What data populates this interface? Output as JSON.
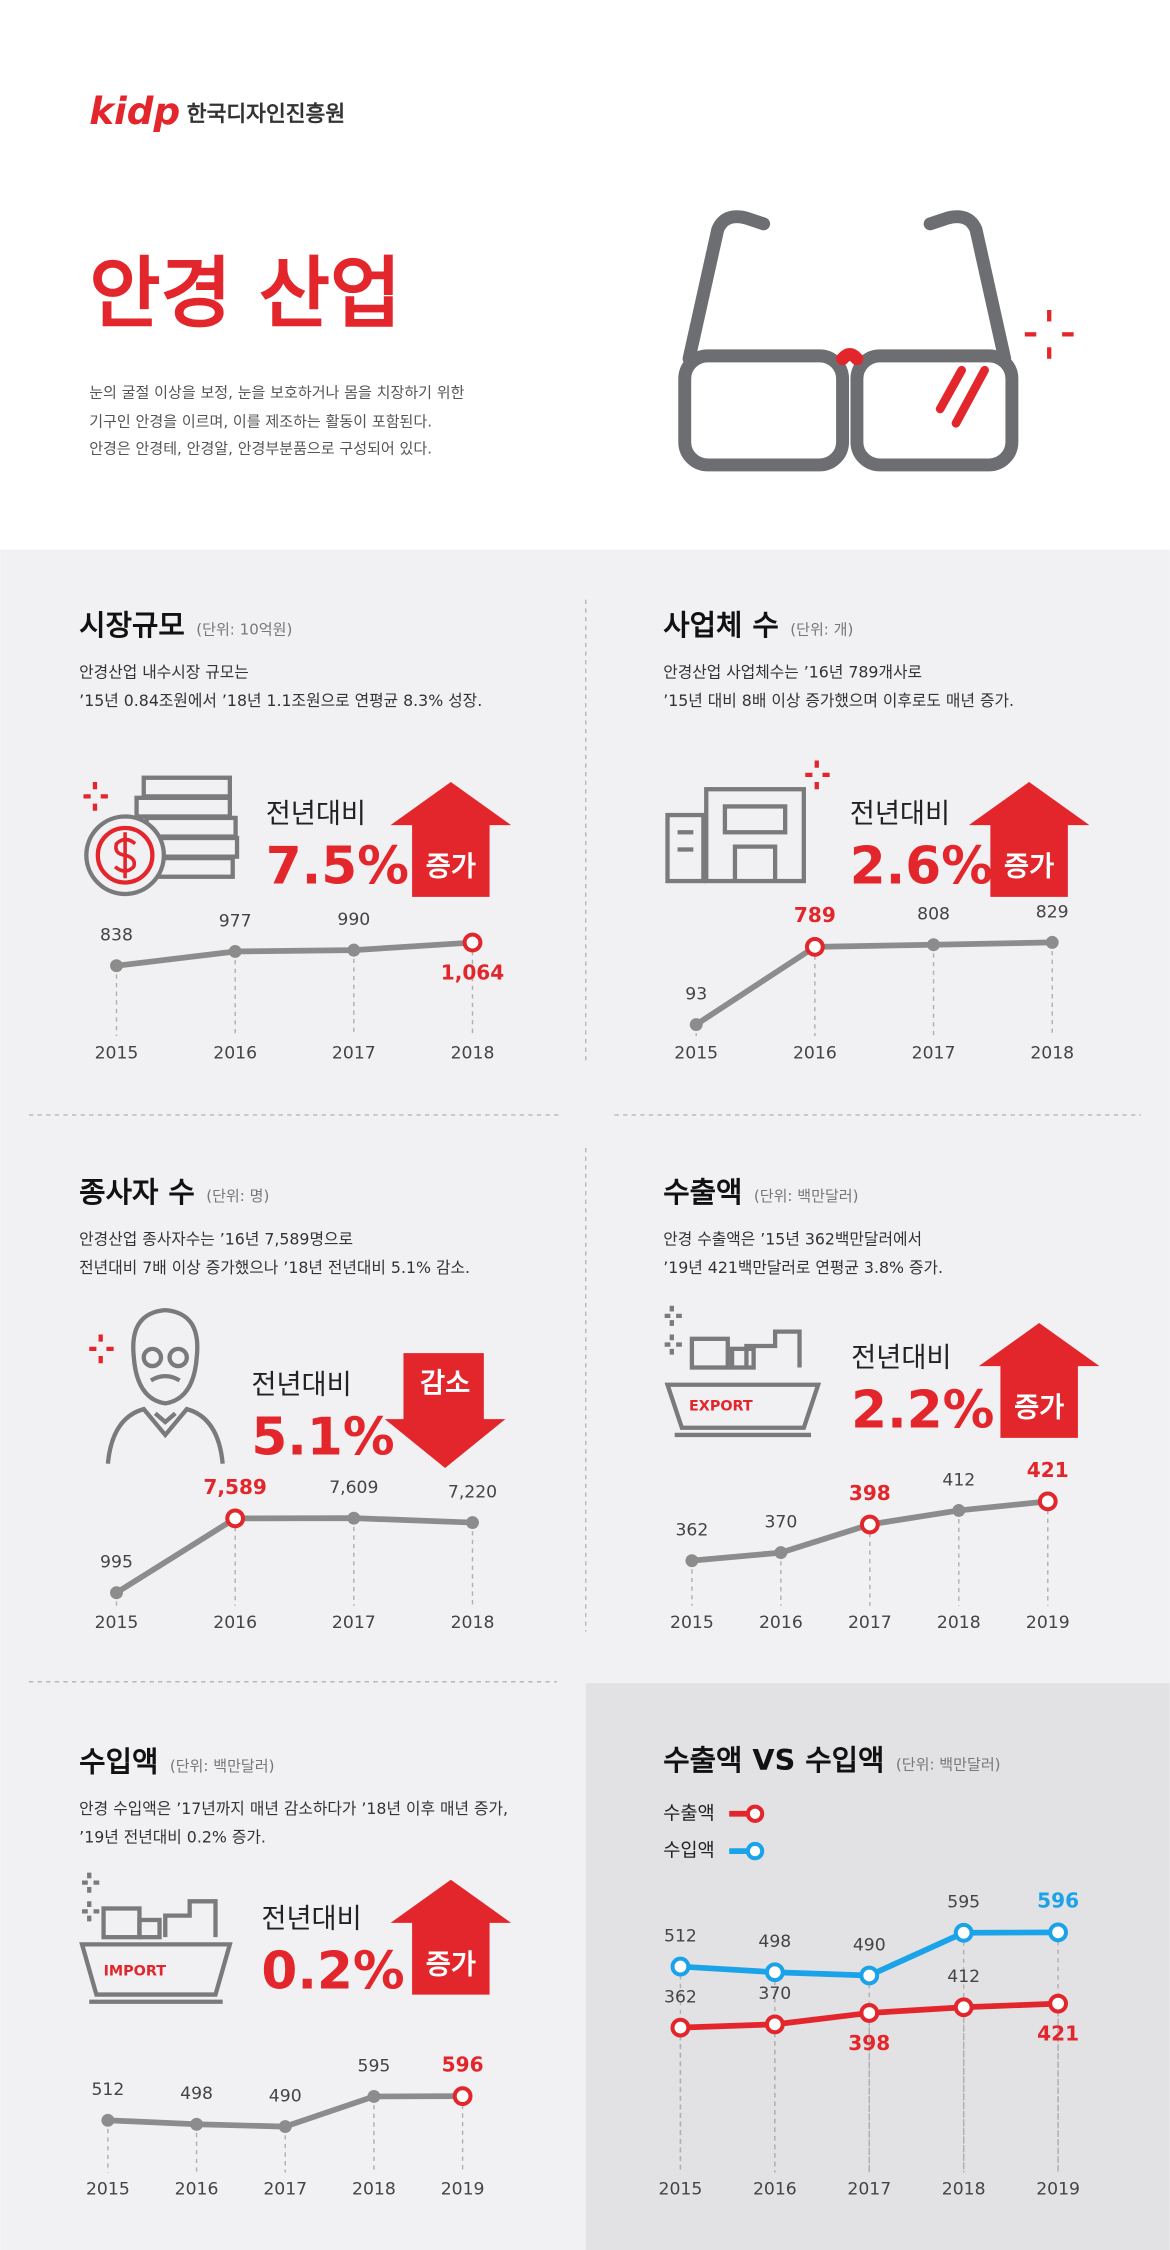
{
  "header": {
    "logo": "kidp",
    "org": "한국디자인진흥원",
    "title": "안경 산업",
    "description": [
      "눈의 굴절 이상을 보정, 눈을 보호하거나 몸을 치장하기 위한",
      "기구인 안경을 이르며, 이를 제조하는 활동이 포함된다.",
      "안경은 안경테, 안경알, 안경부분품으로 구성되어 있다."
    ]
  },
  "chart_data": [
    {
      "type": "line",
      "title": "시장규모",
      "subtitle": "(단위: 10억원)",
      "description": [
        "안경산업 내수시장 규모는",
        "’15년 0.84조원에서 ’18년 1.1조원으로 연평균 8.3% 성장."
      ],
      "change": {
        "label": "전년대비",
        "value": "7.5%",
        "direction": "증가",
        "arrow": "up"
      },
      "categories": [
        "2015",
        "2016",
        "2017",
        "2018"
      ],
      "series": [
        {
          "values": [
            838,
            977,
            990,
            1064
          ],
          "value_labels": [
            "838",
            "977",
            "990",
            "1,064"
          ],
          "highlight": [
            false,
            false,
            false,
            true
          ],
          "color": "#8c8c8c",
          "highlight_color": "#e3262b"
        }
      ],
      "ylim": [
        250,
        1230
      ]
    },
    {
      "type": "line",
      "title": "사업체 수",
      "subtitle": "(단위: 개)",
      "description": [
        "안경산업 사업체수는 ’16년 789개사로",
        "’15년 대비 8배 이상 증가했으며 이후로도 매년 증가."
      ],
      "change": {
        "label": "전년대비",
        "value": "2.6%",
        "direction": "증가",
        "arrow": "up"
      },
      "categories": [
        "2015",
        "2016",
        "2017",
        "2018"
      ],
      "series": [
        {
          "values": [
            93,
            789,
            808,
            829
          ],
          "highlight": [
            false,
            true,
            false,
            false
          ],
          "color": "#8c8c8c",
          "highlight_color": "#e3262b"
        }
      ],
      "ylim": [
        80,
        980
      ]
    },
    {
      "type": "line",
      "title": "종사자 수",
      "subtitle": "(단위: 명)",
      "description": [
        "안경산업 종사자수는 ’16년 7,589명으로",
        "전년대비 7배 이상 증가했으나 ’18년 전년대비 5.1% 감소."
      ],
      "change": {
        "label": "전년대비",
        "value": "5.1%",
        "direction": "감소",
        "arrow": "down"
      },
      "categories": [
        "2015",
        "2016",
        "2017",
        "2018"
      ],
      "series": [
        {
          "values": [
            995,
            7589,
            7609,
            7220
          ],
          "value_labels": [
            "995",
            "7,589",
            "7,609",
            "7,220"
          ],
          "highlight": [
            false,
            true,
            false,
            false
          ],
          "color": "#8c8c8c",
          "highlight_color": "#e3262b"
        }
      ],
      "ylim": [
        990,
        9900
      ]
    },
    {
      "type": "line",
      "title": "수출액",
      "subtitle": "(단위: 백만달러)",
      "description": [
        "안경 수출액은 ’15년 362백만달러에서",
        "’19년 421백만달러로 연평균 3.8% 증가."
      ],
      "icon_label": "EXPORT",
      "change": {
        "label": "전년대비",
        "value": "2.2%",
        "direction": "증가",
        "arrow": "up"
      },
      "categories": [
        "2015",
        "2016",
        "2017",
        "2018",
        "2019"
      ],
      "series": [
        {
          "values": [
            362,
            370,
            398,
            412,
            421
          ],
          "highlight": [
            false,
            false,
            true,
            false,
            true
          ],
          "color": "#8c8c8c",
          "highlight_color": "#e3262b"
        }
      ],
      "ylim": [
        330,
        430
      ]
    },
    {
      "type": "line",
      "title": "수입액",
      "subtitle": "(단위: 백만달러)",
      "description": [
        "안경 수입액은 ’17년까지 매년 감소하다가 ’18년 이후 매년 증가,",
        "’19년 전년대비 0.2% 증가."
      ],
      "icon_label": "IMPORT",
      "change": {
        "label": "전년대비",
        "value": "0.2%",
        "direction": "증가",
        "arrow": "up"
      },
      "categories": [
        "2015",
        "2016",
        "2017",
        "2018",
        "2019"
      ],
      "series": [
        {
          "values": [
            512,
            498,
            490,
            595,
            596
          ],
          "highlight": [
            false,
            false,
            false,
            false,
            true
          ],
          "color": "#8c8c8c",
          "highlight_color": "#e3262b"
        }
      ],
      "ylim": [
        350,
        700
      ]
    },
    {
      "type": "line",
      "title": "수출액 VS 수입액",
      "subtitle": "(단위: 백만달러)",
      "categories": [
        "2015",
        "2016",
        "2017",
        "2018",
        "2019"
      ],
      "series": [
        {
          "name": "수출액",
          "values": [
            362,
            370,
            398,
            412,
            421
          ],
          "highlight": [
            false,
            false,
            true,
            false,
            true
          ],
          "color": "#e3262b",
          "marker": "ring"
        },
        {
          "name": "수입액",
          "values": [
            512,
            498,
            490,
            595,
            596
          ],
          "highlight": [
            false,
            false,
            false,
            false,
            true
          ],
          "color": "#1aa3e8",
          "marker": "ring"
        }
      ],
      "ylim": [
        20,
        690
      ]
    }
  ]
}
